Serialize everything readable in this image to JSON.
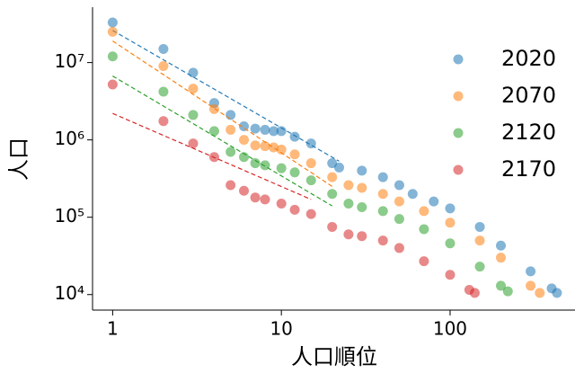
{
  "chart_data": {
    "type": "scatter",
    "x_label": "人口順位",
    "y_label": "人口",
    "x_log": true,
    "y_log": true,
    "xlim": [
      0.76,
      550
    ],
    "ylim": [
      6300,
      52000000
    ],
    "xticks": [
      1,
      10,
      100
    ],
    "yticks": [
      {
        "value": 10000,
        "label": "10⁴"
      },
      {
        "value": 100000,
        "label": "10⁵"
      },
      {
        "value": 1000000,
        "label": "10⁶"
      },
      {
        "value": 10000000,
        "label": "10⁷"
      }
    ],
    "legend": "upper right",
    "series": [
      {
        "name": "2020",
        "color": "#1f77b4",
        "x": [
          1,
          2,
          3,
          4,
          5,
          6,
          7,
          8,
          9,
          10,
          12,
          15,
          20,
          22,
          30,
          40,
          50,
          60,
          80,
          100,
          150,
          200,
          300,
          400,
          430
        ],
        "values": [
          33000000,
          15000000,
          7400000,
          3000000,
          2100000,
          1500000,
          1400000,
          1350000,
          1300000,
          1300000,
          1100000,
          900000,
          500000,
          440000,
          400000,
          330000,
          260000,
          200000,
          160000,
          130000,
          75000,
          43000,
          20000,
          12000,
          10500
        ],
        "trend_x": [
          1,
          22
        ],
        "trend_values": [
          26000000,
          530000
        ]
      },
      {
        "name": "2070",
        "color": "#ff7f0e",
        "x": [
          1,
          2,
          3,
          4,
          5,
          6,
          7,
          8,
          9,
          10,
          12,
          15,
          20,
          25,
          30,
          40,
          50,
          70,
          100,
          150,
          200,
          300,
          340
        ],
        "values": [
          25000000,
          9000000,
          4600000,
          2500000,
          1350000,
          1000000,
          850000,
          830000,
          800000,
          750000,
          650000,
          500000,
          330000,
          260000,
          240000,
          200000,
          160000,
          120000,
          85000,
          50000,
          30000,
          13000,
          10500
        ],
        "trend_x": [
          1,
          20
        ],
        "trend_values": [
          19000000,
          250000
        ]
      },
      {
        "name": "2120",
        "color": "#2ca02c",
        "x": [
          1,
          2,
          3,
          4,
          5,
          6,
          7,
          8,
          10,
          12,
          15,
          20,
          25,
          30,
          40,
          50,
          70,
          100,
          150,
          200,
          220
        ],
        "values": [
          12000000,
          4200000,
          2100000,
          1300000,
          700000,
          600000,
          500000,
          470000,
          430000,
          380000,
          300000,
          200000,
          150000,
          135000,
          120000,
          95000,
          70000,
          46000,
          23000,
          13000,
          11000
        ],
        "trend_x": [
          1,
          20
        ],
        "trend_values": [
          6700000,
          140000
        ]
      },
      {
        "name": "2170",
        "color": "#d62728",
        "x": [
          1,
          2,
          3,
          4,
          5,
          6,
          7,
          8,
          10,
          12,
          15,
          20,
          25,
          30,
          40,
          50,
          70,
          100,
          130,
          140
        ],
        "values": [
          5200000,
          1750000,
          900000,
          600000,
          260000,
          220000,
          180000,
          170000,
          150000,
          125000,
          110000,
          75000,
          60000,
          57000,
          50000,
          40000,
          27000,
          18000,
          11500,
          10500
        ],
        "trend_x": [
          1,
          15
        ],
        "trend_values": [
          2200000,
          170000
        ]
      }
    ]
  }
}
